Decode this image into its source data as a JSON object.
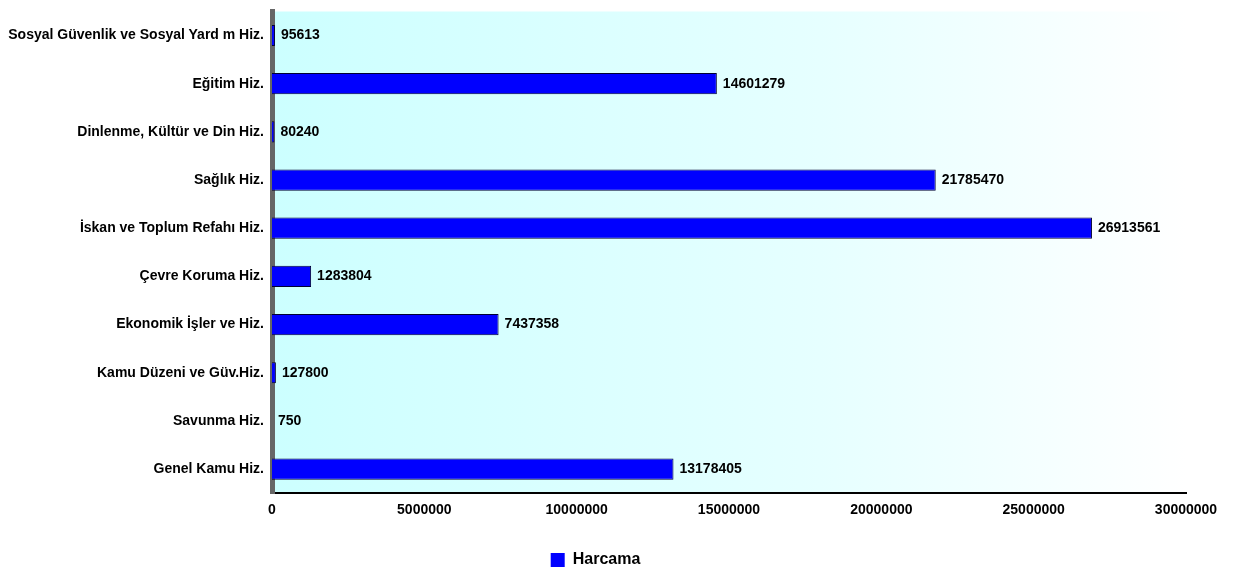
{
  "chart_data": {
    "type": "bar",
    "orientation": "horizontal",
    "categories": [
      "Sosyal Güvenlik ve Sosyal Yard m Hiz.",
      "Eğitim Hiz.",
      "Dinlenme, Kültür ve Din Hiz.",
      "Sağlık Hiz.",
      "İskan ve Toplum Refahı Hiz.",
      "Çevre Koruma Hiz.",
      "Ekonomik İşler ve Hiz.",
      "Kamu Düzeni ve Güv.Hiz.",
      "Savunma Hiz.",
      "Genel Kamu Hiz."
    ],
    "series": [
      {
        "name": "Harcama",
        "color": "#0000ff",
        "values": [
          95613,
          14601279,
          80240,
          21785470,
          26913561,
          1283804,
          7437358,
          127800,
          750,
          13178405
        ]
      }
    ],
    "xlim": [
      0,
      30000000
    ],
    "xticks": [
      0,
      5000000,
      10000000,
      15000000,
      20000000,
      25000000,
      30000000
    ],
    "data_labels": true,
    "grid": false,
    "legend": "bottom"
  }
}
